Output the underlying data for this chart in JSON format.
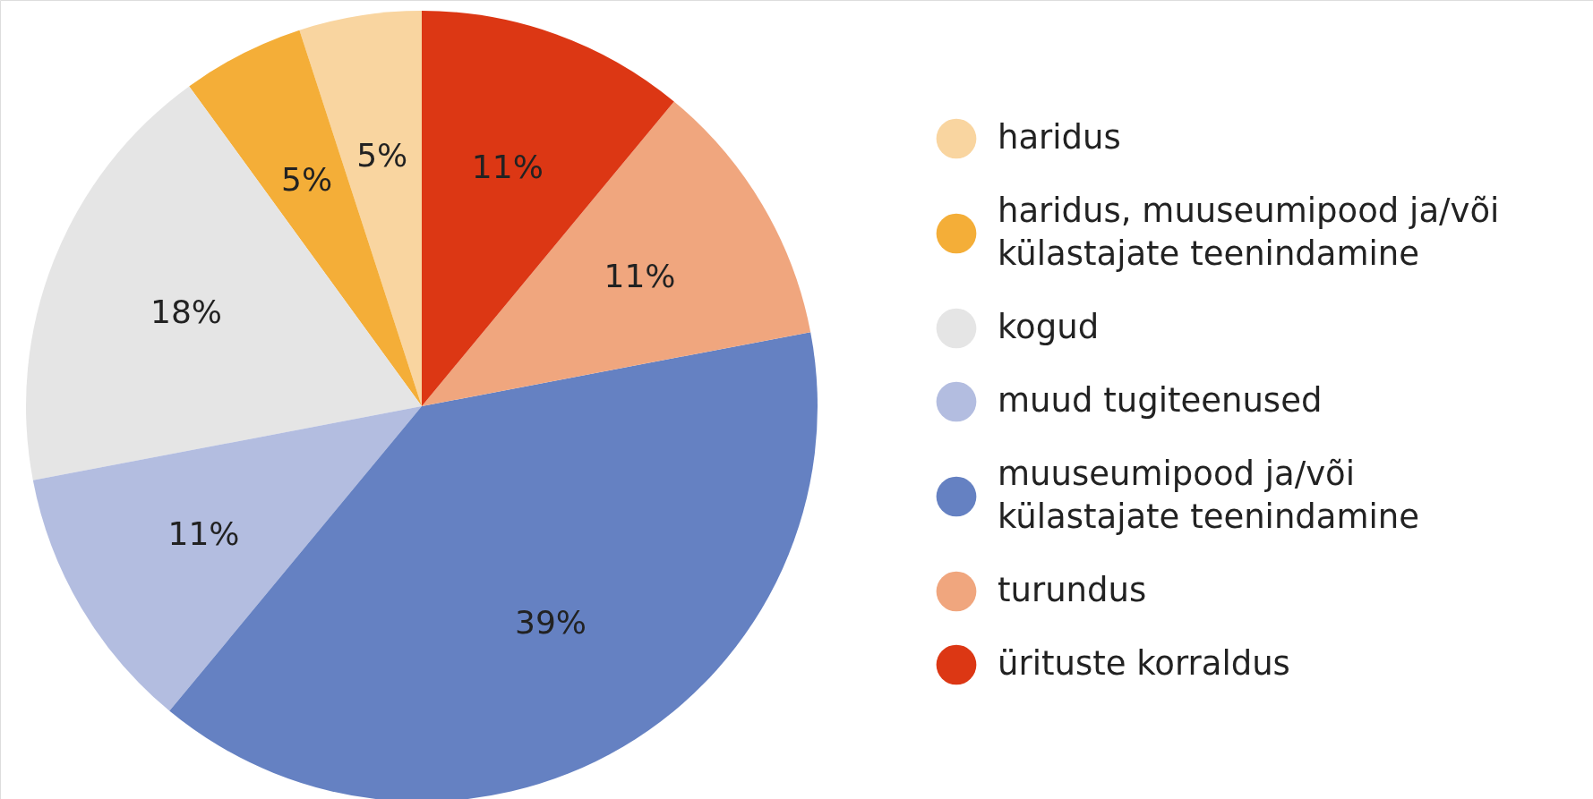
{
  "chart_data": {
    "type": "pie",
    "categories": [
      "haridus",
      "haridus, muuseumipood ja/või külastajate teenindamine",
      "kogud",
      "muud tugiteenused",
      "muuseumipood ja/või külastajate teenindamine",
      "turundus",
      "ürituste korraldus"
    ],
    "values": [
      5,
      5,
      18,
      11,
      39,
      11,
      11
    ],
    "colors": [
      "#f9d5a0",
      "#f4ae38",
      "#e5e5e5",
      "#b3bde0",
      "#6581c2",
      "#f0a67e",
      "#dc3714"
    ],
    "value_labels": [
      "5%",
      "5%",
      "18%",
      "11%",
      "39%",
      "11%",
      "11%"
    ],
    "legend": "right"
  }
}
